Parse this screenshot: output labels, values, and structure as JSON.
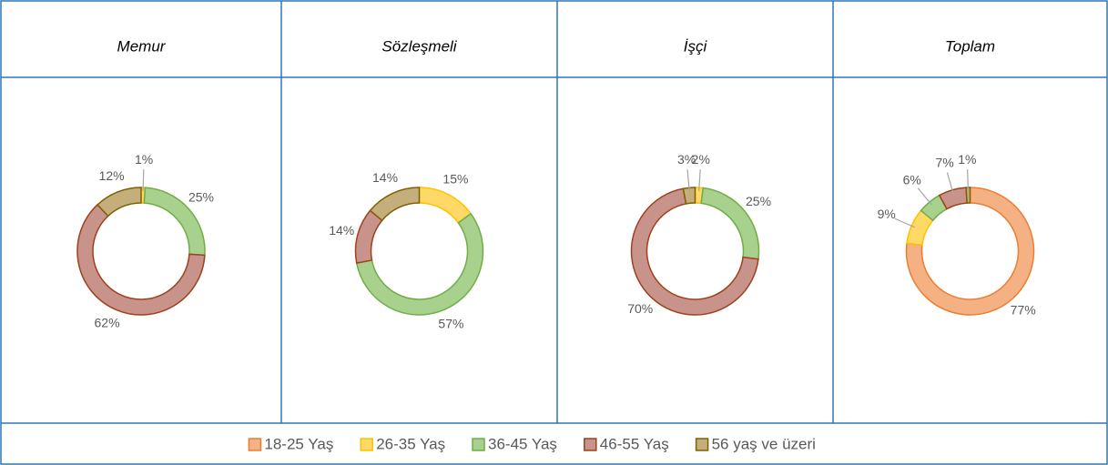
{
  "chart_data": [
    {
      "type": "donut",
      "title": "Memur",
      "values": [
        null,
        1,
        25,
        62,
        12
      ],
      "value_labels": [
        null,
        "1%",
        "25%",
        "62%",
        "12%"
      ]
    },
    {
      "type": "donut",
      "title": "Sözleşmeli",
      "values": [
        null,
        15,
        57,
        14,
        14
      ],
      "value_labels": [
        null,
        "15%",
        "57%",
        "14%",
        "14%"
      ]
    },
    {
      "type": "donut",
      "title": "İşçi",
      "values": [
        null,
        2,
        25,
        70,
        3
      ],
      "value_labels": [
        null,
        "2%",
        "25%",
        "70%",
        "3%"
      ]
    },
    {
      "type": "donut",
      "title": "Toplam",
      "values": [
        77,
        9,
        6,
        7,
        1
      ],
      "value_labels": [
        "77%",
        "9%",
        "6%",
        "7%",
        "1%"
      ]
    }
  ],
  "legend": {
    "items": [
      {
        "name": "18-25 Yaş",
        "color": "#f4b183",
        "border": "#ed7d31"
      },
      {
        "name": "26-35 Yaş",
        "color": "#ffd966",
        "border": "#ffc000"
      },
      {
        "name": "36-45 Yaş",
        "color": "#a9d18e",
        "border": "#70ad47"
      },
      {
        "name": "46-55 Yaş",
        "color": "#c8938a",
        "border": "#a0401c"
      },
      {
        "name": "56 yaş ve üzeri",
        "color": "#c4ae7c",
        "border": "#7f6000"
      }
    ]
  }
}
